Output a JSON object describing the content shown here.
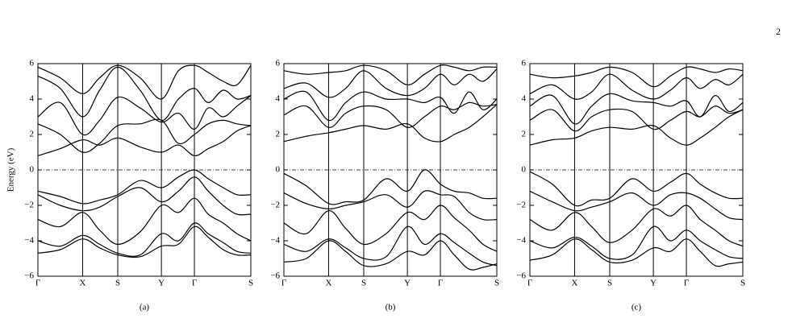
{
  "page_number": "2",
  "chart_data": [
    {
      "type": "line",
      "caption": "(a)",
      "ylabel": "Energy (eV)",
      "color": "#000000",
      "grid": "x",
      "hline": 0,
      "x": [
        0,
        0.105,
        0.21,
        0.29,
        0.375,
        0.48,
        0.58,
        0.66,
        0.735,
        0.8,
        0.87,
        0.935,
        1
      ],
      "xlim": [
        0,
        1
      ],
      "xticks": [
        {
          "value": 0,
          "label": "Γ"
        },
        {
          "value": 0.21,
          "label": "X"
        },
        {
          "value": 0.375,
          "label": "S"
        },
        {
          "value": 0.58,
          "label": "Y"
        },
        {
          "value": 0.735,
          "label": "Γ"
        },
        {
          "value": 1,
          "label": "S"
        }
      ],
      "ylim": [
        -6,
        6
      ],
      "yticks": [
        {
          "value": -6,
          "label": "−6"
        },
        {
          "value": -4,
          "label": "−4"
        },
        {
          "value": -2,
          "label": "−2"
        },
        0,
        2,
        4,
        6
      ],
      "series": [
        {
          "values": [
            -1.2,
            -1.5,
            -1.9,
            -1.7,
            -1.4,
            -0.6,
            -1.0,
            -0.4,
            0.0,
            -0.5,
            -1.0,
            -1.4,
            -1.4
          ]
        },
        {
          "values": [
            -1.4,
            -2.0,
            -2.3,
            -2.1,
            -1.5,
            -1.0,
            -1.8,
            -1.2,
            -0.4,
            -1.2,
            -2.0,
            -2.5,
            -2.5
          ]
        },
        {
          "values": [
            -2.8,
            -3.2,
            -2.4,
            -3.4,
            -4.2,
            -3.5,
            -2.0,
            -2.4,
            -1.6,
            -2.5,
            -3.0,
            -3.6,
            -4.0
          ]
        },
        {
          "values": [
            -4.0,
            -4.3,
            -3.7,
            -4.2,
            -4.7,
            -4.8,
            -3.6,
            -4.0,
            -3.0,
            -3.6,
            -4.1,
            -4.6,
            -4.7
          ]
        },
        {
          "values": [
            -4.7,
            -4.5,
            -3.9,
            -4.4,
            -4.8,
            -4.9,
            -4.3,
            -4.2,
            -3.2,
            -3.8,
            -4.5,
            -4.8,
            -4.8
          ]
        },
        {
          "values": [
            0.8,
            1.2,
            1.7,
            1.4,
            1.8,
            1.3,
            1.0,
            1.4,
            0.8,
            1.2,
            1.6,
            2.2,
            2.5
          ]
        },
        {
          "values": [
            2.6,
            2.0,
            1.0,
            1.5,
            2.5,
            2.6,
            2.8,
            1.5,
            2.0,
            2.6,
            2.8,
            2.6,
            2.5
          ]
        },
        {
          "values": [
            3.0,
            3.8,
            2.0,
            2.8,
            4.1,
            3.5,
            2.7,
            3.2,
            2.3,
            3.5,
            3.0,
            3.6,
            4.2
          ]
        },
        {
          "values": [
            5.3,
            4.6,
            3.0,
            4.5,
            5.8,
            4.5,
            2.8,
            4.0,
            4.6,
            3.8,
            4.5,
            4.0,
            4.2
          ]
        },
        {
          "values": [
            5.8,
            5.2,
            4.3,
            5.2,
            5.9,
            5.2,
            4.0,
            5.6,
            5.9,
            5.5,
            5.0,
            4.8,
            5.9
          ]
        }
      ]
    },
    {
      "type": "line",
      "caption": "(b)",
      "color": "#000000",
      "grid": "x",
      "hline": 0,
      "x": [
        0,
        0.105,
        0.21,
        0.29,
        0.375,
        0.48,
        0.58,
        0.66,
        0.735,
        0.8,
        0.87,
        0.935,
        1
      ],
      "xlim": [
        0,
        1
      ],
      "xticks": [
        {
          "value": 0,
          "label": "Γ"
        },
        {
          "value": 0.21,
          "label": "X"
        },
        {
          "value": 0.375,
          "label": "S"
        },
        {
          "value": 0.58,
          "label": "Y"
        },
        {
          "value": 0.735,
          "label": "Γ"
        },
        {
          "value": 1,
          "label": "S"
        }
      ],
      "ylim": [
        -6,
        6
      ],
      "yticks": [
        {
          "value": -6,
          "label": "−6"
        },
        {
          "value": -4,
          "label": "−4"
        },
        {
          "value": -2,
          "label": "−2"
        },
        0,
        2,
        4,
        6
      ],
      "series": [
        {
          "values": [
            -0.2,
            -0.9,
            -1.9,
            -1.8,
            -1.7,
            -0.5,
            -1.2,
            0.0,
            -0.8,
            -1.2,
            -1.3,
            -1.6,
            -1.6
          ]
        },
        {
          "values": [
            -1.3,
            -1.9,
            -2.2,
            -2.0,
            -1.8,
            -1.4,
            -2.1,
            -1.2,
            -1.4,
            -1.5,
            -2.4,
            -2.8,
            -2.8
          ]
        },
        {
          "values": [
            -3.0,
            -3.6,
            -2.3,
            -3.3,
            -4.2,
            -3.6,
            -2.4,
            -2.8,
            -2.0,
            -2.7,
            -3.4,
            -4.2,
            -4.6
          ]
        },
        {
          "values": [
            -4.2,
            -4.6,
            -3.9,
            -4.4,
            -5.0,
            -4.9,
            -3.2,
            -4.2,
            -3.6,
            -4.1,
            -4.7,
            -5.2,
            -5.4
          ]
        },
        {
          "values": [
            -5.2,
            -5.0,
            -4.0,
            -4.6,
            -5.4,
            -5.3,
            -4.6,
            -4.8,
            -4.0,
            -4.8,
            -5.6,
            -5.5,
            -5.3
          ]
        },
        {
          "values": [
            1.6,
            1.9,
            2.1,
            2.3,
            2.5,
            2.3,
            2.6,
            1.8,
            1.6,
            2.0,
            2.4,
            3.0,
            3.7
          ]
        },
        {
          "values": [
            3.1,
            3.6,
            2.4,
            3.2,
            3.6,
            3.4,
            2.4,
            3.0,
            3.6,
            3.4,
            3.8,
            3.6,
            3.7
          ]
        },
        {
          "values": [
            4.0,
            4.4,
            2.8,
            3.8,
            4.4,
            4.0,
            4.0,
            3.8,
            4.1,
            3.2,
            4.4,
            3.4,
            4.0
          ]
        },
        {
          "values": [
            4.6,
            4.9,
            4.1,
            4.6,
            5.6,
            4.6,
            4.2,
            4.6,
            5.4,
            4.8,
            5.4,
            5.0,
            5.7
          ]
        },
        {
          "values": [
            5.6,
            5.4,
            5.5,
            5.6,
            5.9,
            5.6,
            4.8,
            5.4,
            5.9,
            5.8,
            5.6,
            5.8,
            5.8
          ]
        }
      ]
    },
    {
      "type": "line",
      "caption": "(c)",
      "color": "#000000",
      "grid": "x",
      "hline": 0,
      "x": [
        0,
        0.105,
        0.21,
        0.29,
        0.375,
        0.48,
        0.58,
        0.66,
        0.735,
        0.8,
        0.87,
        0.935,
        1
      ],
      "xlim": [
        0,
        1
      ],
      "xticks": [
        {
          "value": 0,
          "label": "Γ"
        },
        {
          "value": 0.21,
          "label": "X"
        },
        {
          "value": 0.375,
          "label": "S"
        },
        {
          "value": 0.58,
          "label": "Y"
        },
        {
          "value": 0.735,
          "label": "Γ"
        },
        {
          "value": 1,
          "label": "S"
        }
      ],
      "ylim": [
        -6,
        6
      ],
      "yticks": [
        {
          "value": -6,
          "label": "−6"
        },
        {
          "value": -4,
          "label": "−4"
        },
        {
          "value": -2,
          "label": "−2"
        },
        0,
        2,
        4,
        6
      ],
      "series": [
        {
          "values": [
            -0.1,
            -0.8,
            -2.0,
            -1.7,
            -1.6,
            -0.5,
            -1.2,
            -0.7,
            -0.2,
            -0.8,
            -1.3,
            -1.6,
            -1.6
          ]
        },
        {
          "values": [
            -1.2,
            -1.8,
            -2.3,
            -2.1,
            -1.8,
            -1.3,
            -2.0,
            -1.4,
            -1.3,
            -1.6,
            -2.2,
            -2.7,
            -2.8
          ]
        },
        {
          "values": [
            -2.8,
            -3.4,
            -2.4,
            -3.2,
            -4.1,
            -3.4,
            -2.2,
            -2.6,
            -2.0,
            -2.8,
            -3.4,
            -4.0,
            -4.3
          ]
        },
        {
          "values": [
            -4.0,
            -4.4,
            -3.8,
            -4.3,
            -5.0,
            -4.8,
            -3.2,
            -4.0,
            -3.4,
            -4.0,
            -4.5,
            -4.9,
            -5.0
          ]
        },
        {
          "values": [
            -5.1,
            -4.8,
            -3.9,
            -4.5,
            -5.2,
            -5.1,
            -4.4,
            -4.6,
            -3.9,
            -4.6,
            -5.4,
            -5.3,
            -5.2
          ]
        },
        {
          "values": [
            1.4,
            1.7,
            1.8,
            2.2,
            2.4,
            2.3,
            2.5,
            1.8,
            1.4,
            1.8,
            2.4,
            3.0,
            3.4
          ]
        },
        {
          "values": [
            2.8,
            3.4,
            2.2,
            3.0,
            3.4,
            3.3,
            2.3,
            2.8,
            3.3,
            3.0,
            3.6,
            3.2,
            3.4
          ]
        },
        {
          "values": [
            3.6,
            4.2,
            2.6,
            3.6,
            4.3,
            3.9,
            3.8,
            3.6,
            3.9,
            3.0,
            4.2,
            3.3,
            3.8
          ]
        },
        {
          "values": [
            4.3,
            4.8,
            4.0,
            4.4,
            5.4,
            4.5,
            4.0,
            4.5,
            5.2,
            4.6,
            5.1,
            4.8,
            5.4
          ]
        },
        {
          "values": [
            5.4,
            5.2,
            5.3,
            5.5,
            5.8,
            5.5,
            4.7,
            5.3,
            5.8,
            5.7,
            5.5,
            5.7,
            5.6
          ]
        }
      ]
    }
  ]
}
